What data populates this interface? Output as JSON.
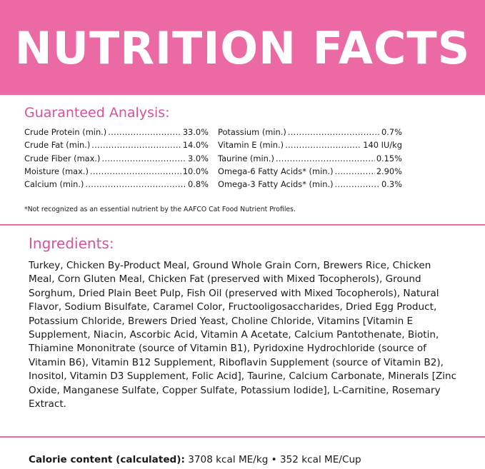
{
  "header": {
    "title": "NUTRITION FACTS",
    "background": "#ec6aa3"
  },
  "guaranteed_analysis": {
    "title": "Guaranteed Analysis:",
    "left_column": [
      {
        "name": "Crude Protein (min.)",
        "value": "33.0%"
      },
      {
        "name": "Crude Fat (min.)",
        "value": "14.0%"
      },
      {
        "name": "Crude Fiber (max.)",
        "value": "3.0%"
      },
      {
        "name": "Moisture (max.)",
        "value": "10.0%"
      },
      {
        "name": "Calcium (min.)",
        "value": "0.8%"
      }
    ],
    "right_column": [
      {
        "name": "Potassium (min.)",
        "value": "0.7%"
      },
      {
        "name": "Vitamin E (min.)",
        "value": "140 IU/kg"
      },
      {
        "name": "Taurine (min.)",
        "value": "0.15%"
      },
      {
        "name": "Omega-6 Fatty Acids* (min.)",
        "value": "2.90%"
      },
      {
        "name": "Omega-3 Fatty Acids* (min.)",
        "value": "0.3%"
      }
    ],
    "footnote": "*Not recognized as an essential nutrient by the AAFCO Cat Food Nutrient Profiles."
  },
  "ingredients": {
    "title": "Ingredients:",
    "text": "Turkey, Chicken By-Product Meal, Ground Whole Grain Corn, Brewers Rice, Chicken Meal, Corn Gluten Meal, Chicken Fat (preserved with Mixed Tocopherols), Ground Sorghum, Dried Plain Beet Pulp, Fish Oil (preserved with Mixed Tocopherols), Natural Flavor, Sodium Bisulfate, Caramel Color, Fructooligosaccharides, Dried Egg Product, Potassium Chloride, Brewers Dried Yeast, Choline Chloride, Vitamins [Vitamin E Supplement, Niacin, Ascorbic Acid, Vitamin A Acetate, Calcium Pantothenate, Biotin, Thiamine Mononitrate (source of Vitamin B1), Pyridoxine Hydrochloride (source of Vitamin B6), Vitamin B12 Supplement, Riboflavin Supplement (source of Vitamin B2), Inositol, Vitamin D3 Supplement, Folic Acid], Taurine, Calcium Carbonate, Minerals [Zinc Oxide, Manganese Sulfate, Copper Sulfate, Potassium Iodide], L-Carnitine, Rosemary Extract."
  },
  "calorie": {
    "label": "Calorie content (calculated):",
    "value": " 3708 kcal ME/kg • 352 kcal ME/Cup"
  },
  "colors": {
    "accent": "#ec6aa3",
    "section_title": "#d6539a",
    "text": "#1a1a1a"
  }
}
